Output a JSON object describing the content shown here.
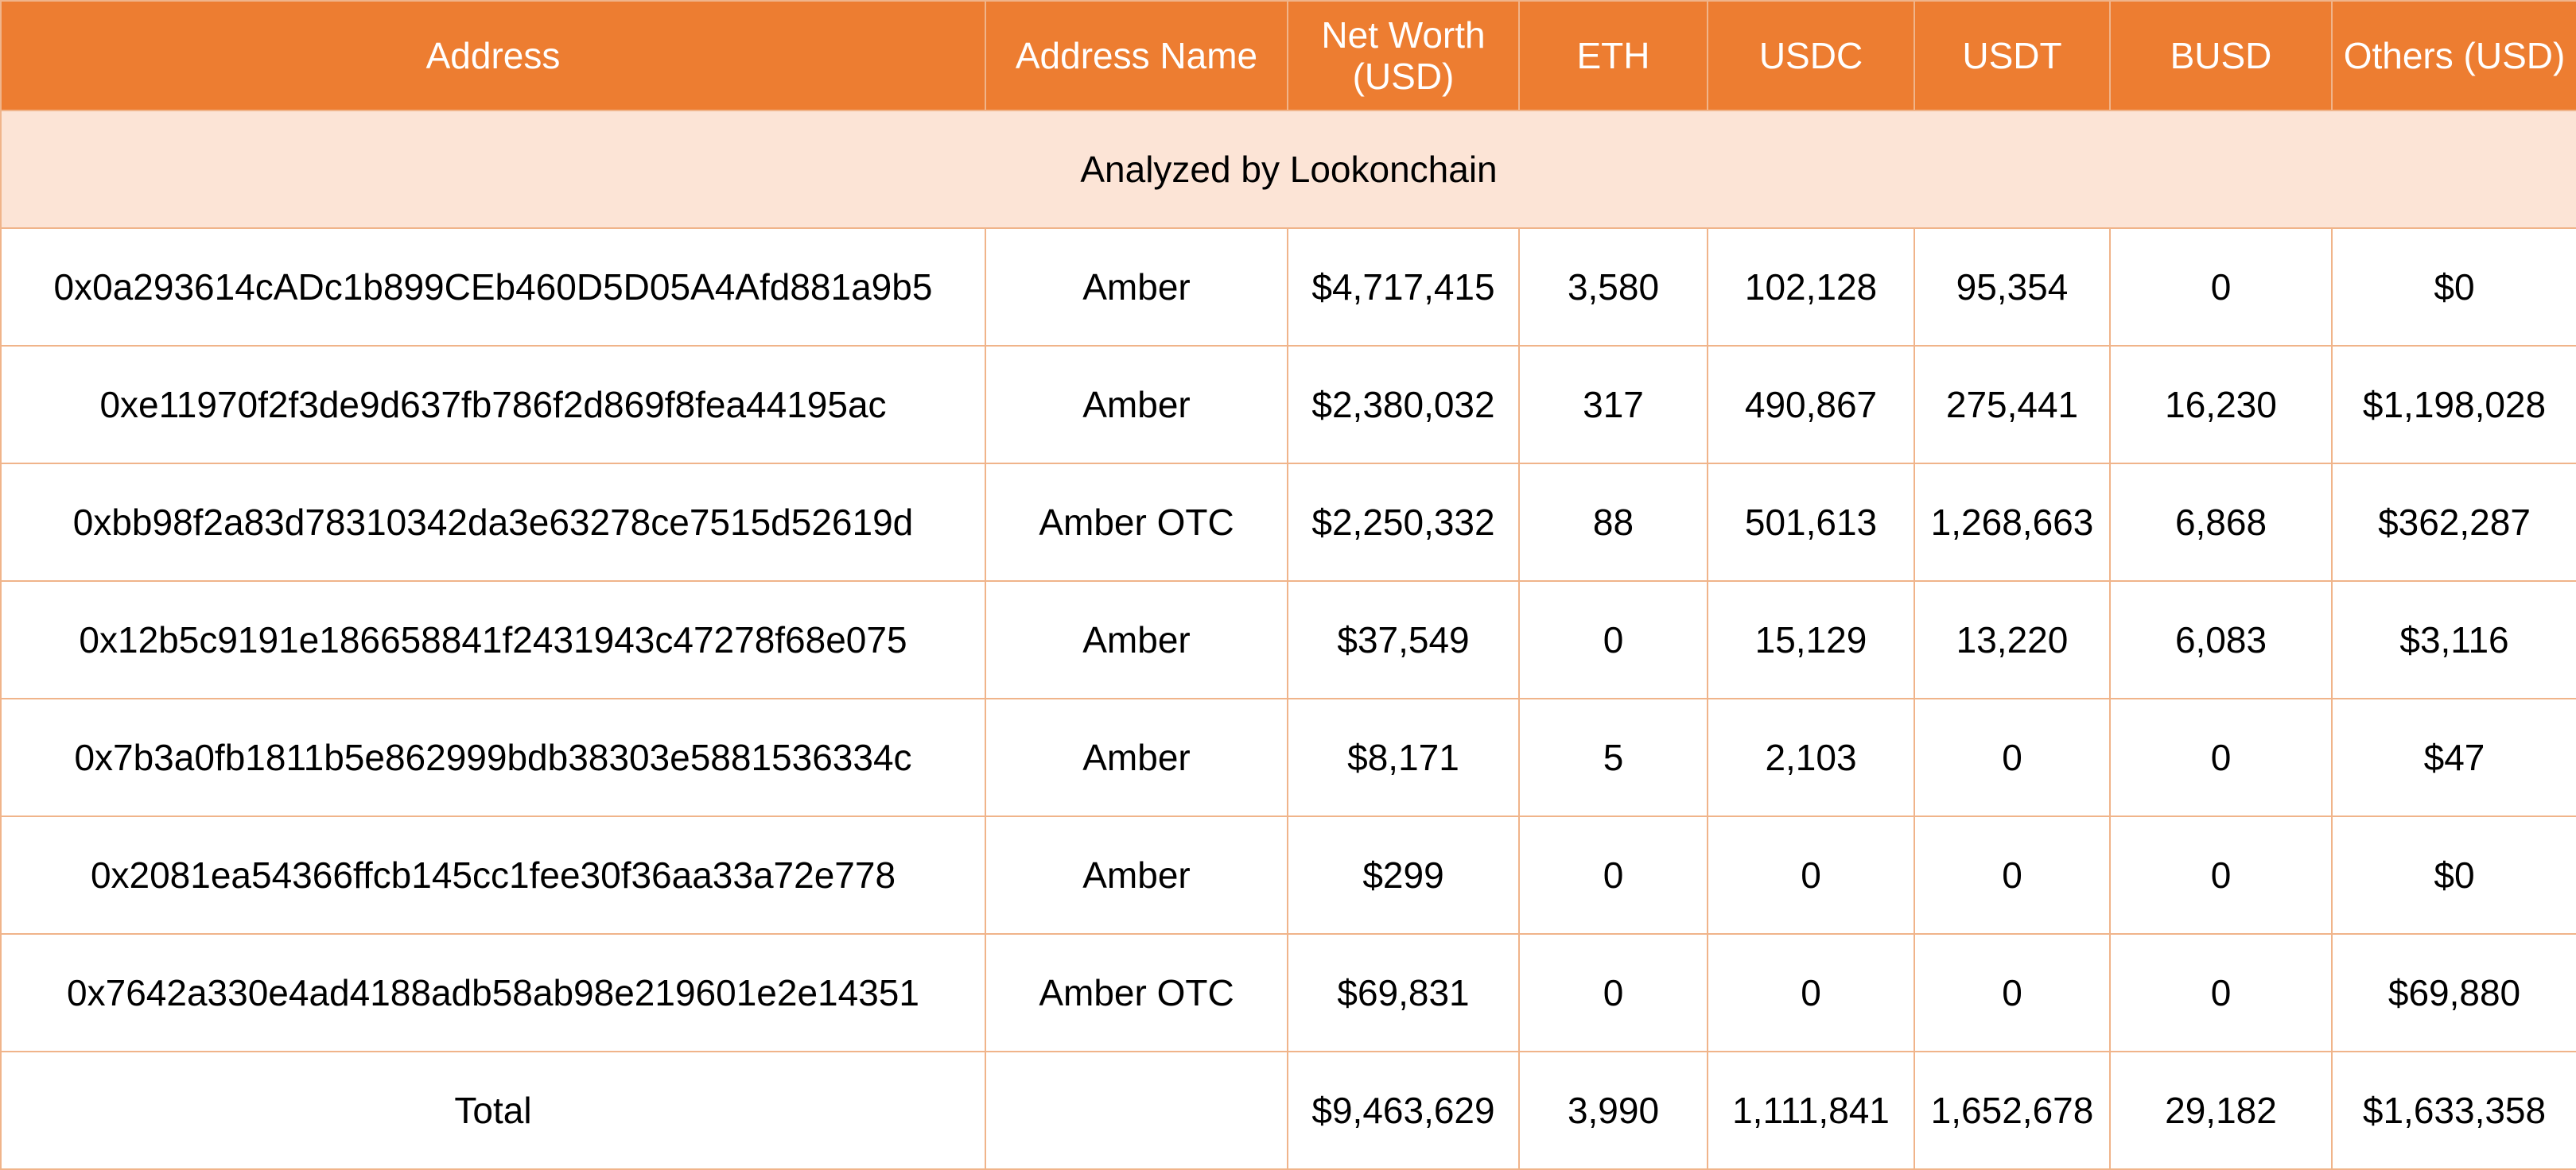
{
  "table": {
    "headers": {
      "address": "Address",
      "address_name": "Address Name",
      "net_worth": "Net Worth (USD)",
      "eth": "ETH",
      "usdc": "USDC",
      "usdt": "USDT",
      "busd": "BUSD",
      "others": "Others (USD)"
    },
    "analyzed_by": "Analyzed by Lookonchain",
    "rows": [
      {
        "address": "0x0a293614cADc1b899CEb460D5D05A4Afd881a9b5",
        "name": "Amber",
        "net_worth": "$4,717,415",
        "eth": "3,580",
        "usdc": "102,128",
        "usdt": "95,354",
        "busd": "0",
        "others": "$0"
      },
      {
        "address": "0xe11970f2f3de9d637fb786f2d869f8fea44195ac",
        "name": "Amber",
        "net_worth": "$2,380,032",
        "eth": "317",
        "usdc": "490,867",
        "usdt": "275,441",
        "busd": "16,230",
        "others": "$1,198,028"
      },
      {
        "address": "0xbb98f2a83d78310342da3e63278ce7515d52619d",
        "name": "Amber OTC",
        "net_worth": "$2,250,332",
        "eth": "88",
        "usdc": "501,613",
        "usdt": "1,268,663",
        "busd": "6,868",
        "others": "$362,287"
      },
      {
        "address": "0x12b5c9191e186658841f2431943c47278f68e075",
        "name": "Amber",
        "net_worth": "$37,549",
        "eth": "0",
        "usdc": "15,129",
        "usdt": "13,220",
        "busd": "6,083",
        "others": "$3,116"
      },
      {
        "address": "0x7b3a0fb1811b5e862999bdb38303e5881536334c",
        "name": "Amber",
        "net_worth": "$8,171",
        "eth": "5",
        "usdc": "2,103",
        "usdt": "0",
        "busd": "0",
        "others": "$47"
      },
      {
        "address": "0x2081ea54366ffcb145cc1fee30f36aa33a72e778",
        "name": "Amber",
        "net_worth": "$299",
        "eth": "0",
        "usdc": "0",
        "usdt": "0",
        "busd": "0",
        "others": "$0"
      },
      {
        "address": "0x7642a330e4ad4188adb58ab98e219601e2e14351",
        "name": "Amber OTC",
        "net_worth": "$69,831",
        "eth": "0",
        "usdc": "0",
        "usdt": "0",
        "busd": "0",
        "others": "$69,880"
      }
    ],
    "total": {
      "label": "Total",
      "name": "",
      "net_worth": "$9,463,629",
      "eth": "3,990",
      "usdc": "1,111,841",
      "usdt": "1,652,678",
      "busd": "29,182",
      "others": "$1,633,358"
    }
  },
  "colors": {
    "header_bg": "#ed7d31",
    "analyzed_bg": "#fce4d6",
    "border": "#f0b48a"
  }
}
